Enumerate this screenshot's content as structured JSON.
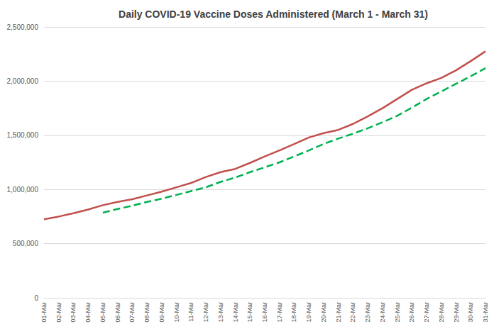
{
  "chart_data": {
    "type": "line",
    "title": "Daily COVID-19 Vaccine Doses Administered (March 1 - March 31)",
    "categories": [
      "01-Mar",
      "02-Mar",
      "03-Mar",
      "04-Mar",
      "05-Mar",
      "06-Mar",
      "07-Mar",
      "08-Mar",
      "09-Mar",
      "10-Mar",
      "11-Mar",
      "12-Mar",
      "13-Mar",
      "14-Mar",
      "15-Mar",
      "16-Mar",
      "17-Mar",
      "18-Mar",
      "19-Mar",
      "20-Mar",
      "21-Mar",
      "22-Mar",
      "23-Mar",
      "24-Mar",
      "25-Mar",
      "26-Mar",
      "27-Mar",
      "28-Mar",
      "29-Mar",
      "30-Mar",
      "31-Mar"
    ],
    "series": [
      {
        "color": "#c0504d",
        "line_style": "solid",
        "values": [
          725000,
          750000,
          780000,
          815000,
          855000,
          885000,
          910000,
          945000,
          980000,
          1020000,
          1060000,
          1115000,
          1160000,
          1190000,
          1245000,
          1305000,
          1360000,
          1420000,
          1480000,
          1520000,
          1550000,
          1605000,
          1675000,
          1750000,
          1835000,
          1920000,
          1980000,
          2030000,
          2100000,
          2185000,
          2275000
        ]
      },
      {
        "color": "#00b050",
        "line_style": "dashed",
        "values": [
          null,
          null,
          null,
          null,
          785000,
          820000,
          850000,
          885000,
          915000,
          950000,
          985000,
          1020000,
          1070000,
          1110000,
          1160000,
          1205000,
          1250000,
          1305000,
          1360000,
          1420000,
          1470000,
          1515000,
          1565000,
          1620000,
          1680000,
          1755000,
          1835000,
          1905000,
          1975000,
          2045000,
          2120000
        ]
      }
    ],
    "ylim": [
      0,
      2500000
    ],
    "yticks": [
      0,
      {
        "value": 500000,
        "label": "500,000"
      },
      {
        "value": 1000000,
        "label": "1,000,000"
      },
      {
        "value": 1500000,
        "label": "1,500,000"
      },
      {
        "value": 2000000,
        "label": "2,000,000"
      },
      {
        "value": 2500000,
        "label": "2,500,000"
      }
    ],
    "grid": true
  }
}
